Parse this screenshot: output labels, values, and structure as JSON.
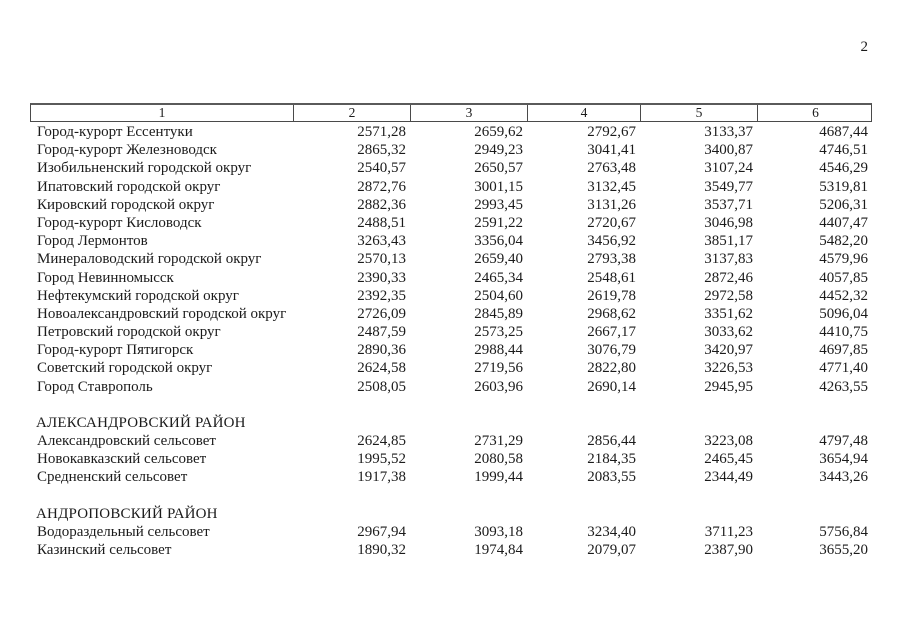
{
  "page": {
    "number": "2"
  },
  "table": {
    "column_headers": [
      "1",
      "2",
      "3",
      "4",
      "5",
      "6"
    ],
    "sections": [
      {
        "title": "",
        "rows": [
          {
            "name": "Город-курорт Ессентуки",
            "values": [
              "2571,28",
              "2659,62",
              "2792,67",
              "3133,37",
              "4687,44"
            ]
          },
          {
            "name": "Город-курорт Железноводск",
            "values": [
              "2865,32",
              "2949,23",
              "3041,41",
              "3400,87",
              "4746,51"
            ]
          },
          {
            "name": "Изобильненский городской округ",
            "values": [
              "2540,57",
              "2650,57",
              "2763,48",
              "3107,24",
              "4546,29"
            ]
          },
          {
            "name": "Ипатовский городской округ",
            "values": [
              "2872,76",
              "3001,15",
              "3132,45",
              "3549,77",
              "5319,81"
            ]
          },
          {
            "name": "Кировский городской округ",
            "values": [
              "2882,36",
              "2993,45",
              "3131,26",
              "3537,71",
              "5206,31"
            ]
          },
          {
            "name": "Город-курорт Кисловодск",
            "values": [
              "2488,51",
              "2591,22",
              "2720,67",
              "3046,98",
              "4407,47"
            ]
          },
          {
            "name": "Город Лермонтов",
            "values": [
              "3263,43",
              "3356,04",
              "3456,92",
              "3851,17",
              "5482,20"
            ]
          },
          {
            "name": "Минераловодский городской округ",
            "values": [
              "2570,13",
              "2659,40",
              "2793,38",
              "3137,83",
              "4579,96"
            ]
          },
          {
            "name": "Город Невинномысск",
            "values": [
              "2390,33",
              "2465,34",
              "2548,61",
              "2872,46",
              "4057,85"
            ]
          },
          {
            "name": "Нефтекумский городской округ",
            "values": [
              "2392,35",
              "2504,60",
              "2619,78",
              "2972,58",
              "4452,32"
            ]
          },
          {
            "name": "Новоалександровский городской округ",
            "values": [
              "2726,09",
              "2845,89",
              "2968,62",
              "3351,62",
              "5096,04"
            ]
          },
          {
            "name": "Петровский городской округ",
            "values": [
              "2487,59",
              "2573,25",
              "2667,17",
              "3033,62",
              "4410,75"
            ]
          },
          {
            "name": "Город-курорт Пятигорск",
            "values": [
              "2890,36",
              "2988,44",
              "3076,79",
              "3420,97",
              "4697,85"
            ]
          },
          {
            "name": "Советский городской округ",
            "values": [
              "2624,58",
              "2719,56",
              "2822,80",
              "3226,53",
              "4771,40"
            ]
          },
          {
            "name": "Город Ставрополь",
            "values": [
              "2508,05",
              "2603,96",
              "2690,14",
              "2945,95",
              "4263,55"
            ]
          }
        ]
      },
      {
        "title": "АЛЕКСАНДРОВСКИЙ РАЙОН",
        "rows": [
          {
            "name": "Александровский сельсовет",
            "values": [
              "2624,85",
              "2731,29",
              "2856,44",
              "3223,08",
              "4797,48"
            ]
          },
          {
            "name": "Новокавказский сельсовет",
            "values": [
              "1995,52",
              "2080,58",
              "2184,35",
              "2465,45",
              "3654,94"
            ]
          },
          {
            "name": "Средненский сельсовет",
            "values": [
              "1917,38",
              "1999,44",
              "2083,55",
              "2344,49",
              "3443,26"
            ]
          }
        ]
      },
      {
        "title": "АНДРОПОВСКИЙ РАЙОН",
        "rows": [
          {
            "name": "Водораздельный сельсовет",
            "values": [
              "2967,94",
              "3093,18",
              "3234,40",
              "3711,23",
              "5756,84"
            ]
          },
          {
            "name": "Казинский сельсовет",
            "values": [
              "1890,32",
              "1974,84",
              "2079,07",
              "2387,90",
              "3655,20"
            ]
          }
        ]
      }
    ]
  }
}
